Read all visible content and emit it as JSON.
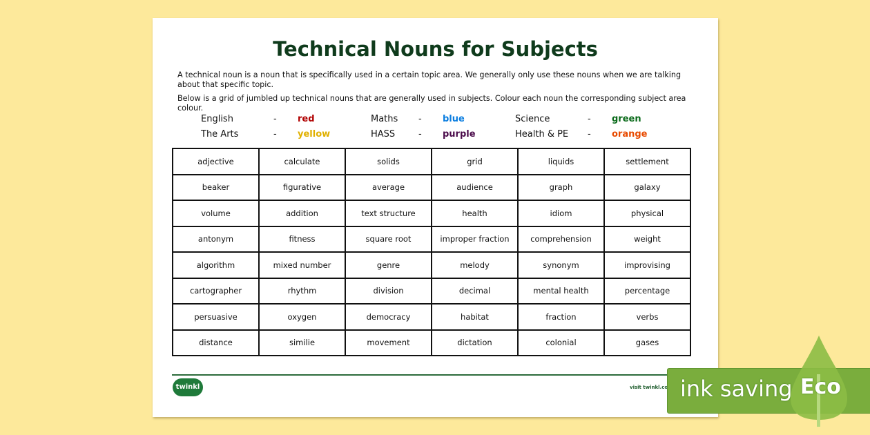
{
  "title": "Technical Nouns for Subjects",
  "intro": "A technical noun is a noun that is specifically used in a certain topic area. We generally only use these nouns when we are talking about that specific topic.",
  "instruction": "Below is a grid of jumbled up technical nouns that are generally used in subjects. Colour each noun the corresponding subject area colour.",
  "legend": [
    {
      "subject": "English",
      "dash": "-",
      "colour": "red",
      "hex": "#b00000"
    },
    {
      "subject": "Maths",
      "dash": "-",
      "colour": "blue",
      "hex": "#0a7de0"
    },
    {
      "subject": "Science",
      "dash": "-",
      "colour": "green",
      "hex": "#0a6a1a"
    },
    {
      "subject": "The Arts",
      "dash": "-",
      "colour": "yellow",
      "hex": "#e0b000"
    },
    {
      "subject": "HASS",
      "dash": "-",
      "colour": "purple",
      "hex": "#4a0a4a"
    },
    {
      "subject": "Health & PE",
      "dash": "-",
      "colour": "orange",
      "hex": "#e84a00"
    }
  ],
  "grid": [
    [
      "adjective",
      "calculate",
      "solids",
      "grid",
      "liquids",
      "settlement"
    ],
    [
      "beaker",
      "figurative",
      "average",
      "audience",
      "graph",
      "galaxy"
    ],
    [
      "volume",
      "addition",
      "text structure",
      "health",
      "idiom",
      "physical"
    ],
    [
      "antonym",
      "fitness",
      "square root",
      "improper fraction",
      "comprehension",
      "weight"
    ],
    [
      "algorithm",
      "mixed number",
      "genre",
      "melody",
      "synonym",
      "improvising"
    ],
    [
      "cartographer",
      "rhythm",
      "division",
      "decimal",
      "mental health",
      "percentage"
    ],
    [
      "persuasive",
      "oxygen",
      "democracy",
      "habitat",
      "fraction",
      "verbs"
    ],
    [
      "distance",
      "similie",
      "movement",
      "dictation",
      "colonial",
      "gases"
    ]
  ],
  "footer": {
    "logo": "twinkl",
    "visit": "visit twinkl.com"
  },
  "badge": {
    "text": "ink saving",
    "eco": "Eco",
    "color": "#7aad3d"
  }
}
